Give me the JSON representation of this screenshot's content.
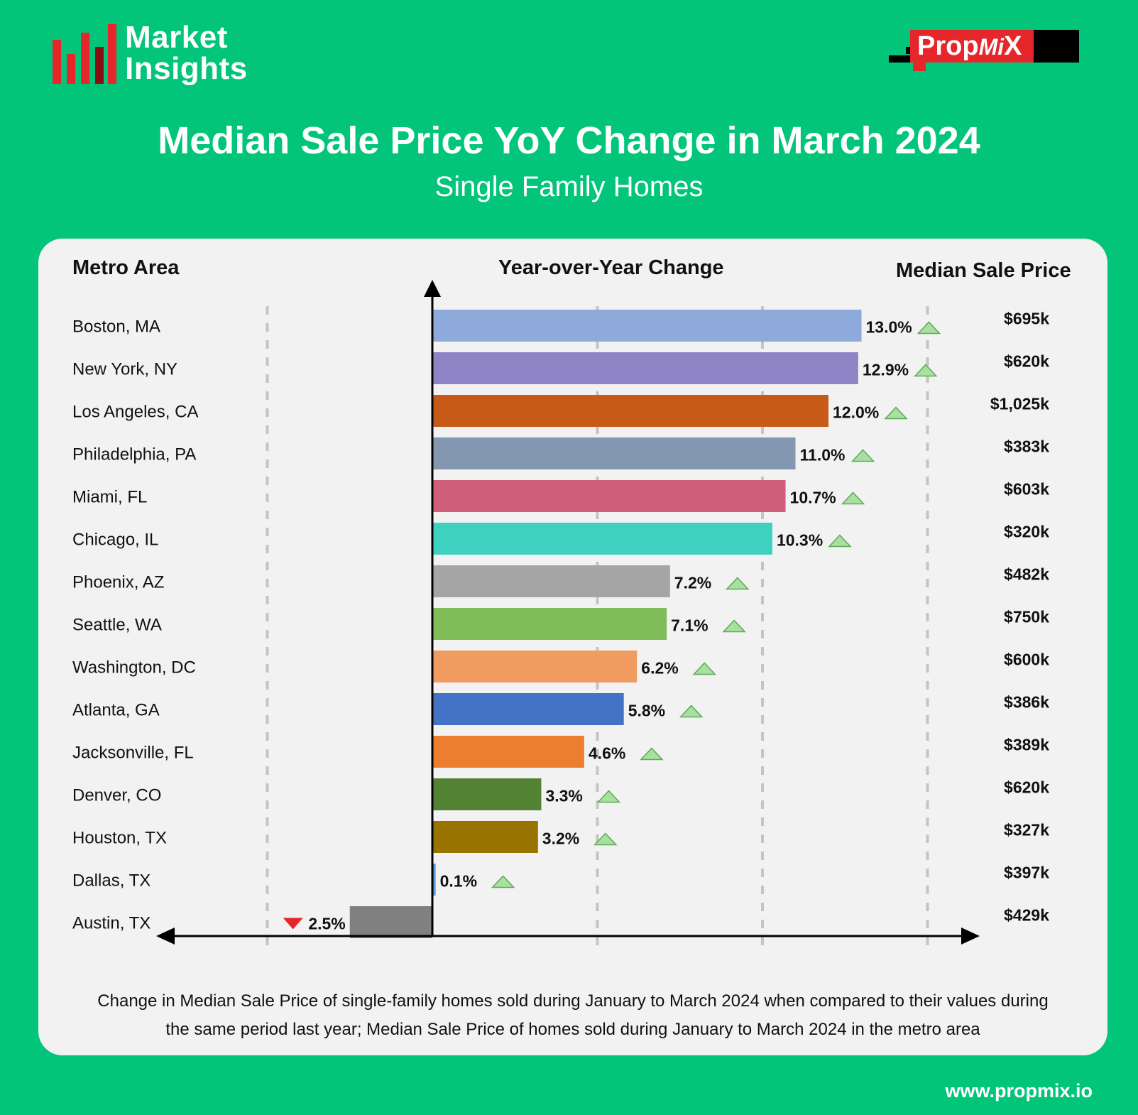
{
  "brand": {
    "left_logo_line1": "Market",
    "left_logo_line2": "Insights",
    "right_logo_prop": "Prop",
    "right_logo_mi": "Mi",
    "right_logo_x": "X",
    "bar_colors": [
      "#e5262a",
      "#e5262a",
      "#e5262a",
      "#8b0c14",
      "#e5262a"
    ]
  },
  "title": "Median Sale Price YoY Change in March 2024",
  "subtitle": "Single Family Homes",
  "headers": {
    "metro": "Metro Area",
    "yoy": "Year-over-Year Change",
    "price": "Median Sale Price"
  },
  "footnote_line1": "Change in Median Sale Price of single-family homes sold during January to March 2024 when compared to their values during",
  "footnote_line2": "the same period last year; Median Sale Price of homes sold during January to March 2024 in the metro area",
  "footer_url": "www.propmix.io",
  "chart_data": {
    "type": "bar",
    "orientation": "horizontal",
    "xlabel": "",
    "ylabel": "",
    "xlim": [
      -5,
      16
    ],
    "categories": [
      "Boston, MA",
      "New York, NY",
      "Los Angeles, CA",
      "Philadelphia, PA",
      "Miami, FL",
      "Chicago, IL",
      "Phoenix, AZ",
      "Seattle, WA",
      "Washington, DC",
      "Atlanta, GA",
      "Jacksonville, FL",
      "Denver, CO",
      "Houston, TX",
      "Dallas, TX",
      "Austin, TX"
    ],
    "values": [
      13.0,
      12.9,
      12.0,
      11.0,
      10.7,
      10.3,
      7.2,
      7.1,
      6.2,
      5.8,
      4.6,
      3.3,
      3.2,
      0.1,
      -2.5
    ],
    "value_labels": [
      "13.0%",
      "12.9%",
      "12.0%",
      "11.0%",
      "10.7%",
      "10.3%",
      "7.2%",
      "7.1%",
      "6.2%",
      "5.8%",
      "4.6%",
      "3.3%",
      "3.2%",
      "0.1%",
      "2.5%"
    ],
    "median_prices": [
      "$695k",
      "$620k",
      "$1,025k",
      "$383k",
      "$603k",
      "$320k",
      "$482k",
      "$750k",
      "$600k",
      "$386k",
      "$389k",
      "$620k",
      "$327k",
      "$397k",
      "$429k"
    ],
    "colors": [
      "#8eaadb",
      "#8e83c5",
      "#c65a16",
      "#8497b0",
      "#d05f7b",
      "#3fd1bf",
      "#a5a5a5",
      "#80bd59",
      "#f29b60",
      "#4472c4",
      "#ed7d31",
      "#548235",
      "#987300",
      "#5b9bd5",
      "#808080"
    ],
    "up_marker_color": "#a8e0a0",
    "down_marker_color": "#e5262a",
    "grid": true,
    "legend": "none"
  }
}
